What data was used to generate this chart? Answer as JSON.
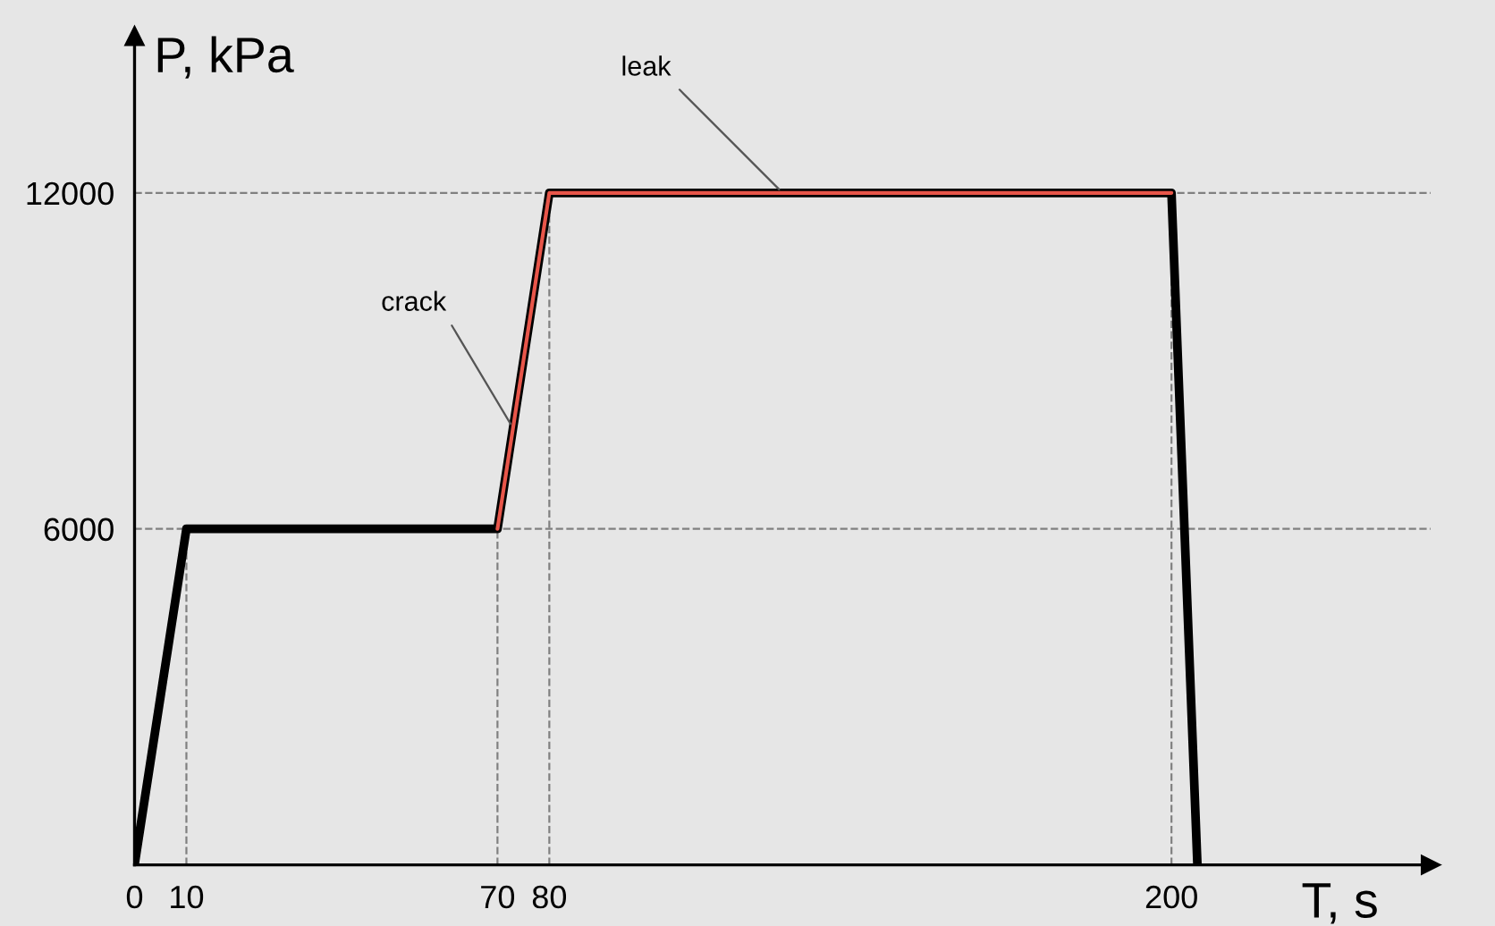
{
  "chart_data": {
    "type": "line",
    "xlabel": "T, s",
    "ylabel": "P, kPa",
    "series": [
      {
        "x": [
          0,
          10,
          70,
          80,
          200,
          205
        ],
        "values": [
          0,
          6000,
          6000,
          12000,
          12000,
          0
        ],
        "color": "#000000"
      },
      {
        "x": [
          70,
          80,
          200
        ],
        "values": [
          6000,
          12000,
          12000
        ],
        "color": "#e8564a"
      }
    ],
    "xlim": [
      0,
      250
    ],
    "xticks": [
      0,
      10,
      70,
      80,
      200
    ],
    "ylim": [
      0,
      14800
    ],
    "yticks": [
      6000,
      12000
    ],
    "ref_lines": [
      {
        "axis": "x",
        "value": 10,
        "color": "#808080",
        "line_style": "dashed"
      },
      {
        "axis": "x",
        "value": 70,
        "color": "#808080",
        "line_style": "dashed"
      },
      {
        "axis": "x",
        "value": 80,
        "color": "#808080",
        "line_style": "dashed"
      },
      {
        "axis": "x",
        "value": 200,
        "color": "#808080",
        "line_style": "dashed"
      },
      {
        "axis": "y",
        "value": 6000,
        "color": "#808080",
        "line_style": "dashed"
      },
      {
        "axis": "y",
        "value": 12000,
        "color": "#808080",
        "line_style": "dashed"
      }
    ],
    "annotations": [
      {
        "text": "crack",
        "x": 73,
        "y": 7800
      },
      {
        "text": "leak",
        "x": 125,
        "y": 12000
      }
    ],
    "grid": false,
    "legend": false,
    "marker": "none",
    "line_style": "solid"
  }
}
